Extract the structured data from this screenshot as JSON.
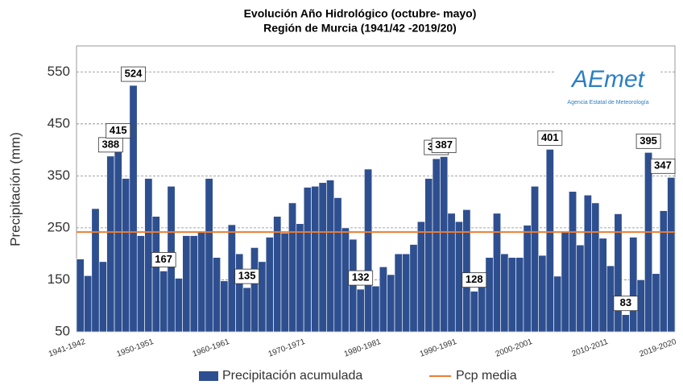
{
  "chart_data": {
    "type": "bar",
    "title": "Evolución Año Hidrológico (octubre- mayo)",
    "subtitle": "Región de Murcia (1941/42 -2019/20)",
    "y_label": "Precipitación (mm)",
    "logo": {
      "text": "AEmet",
      "caption": "Agencia Estatal de Meteorología"
    },
    "categories": [
      "1941-1942",
      null,
      null,
      null,
      null,
      null,
      null,
      null,
      null,
      "1950-1951",
      null,
      null,
      null,
      null,
      null,
      null,
      null,
      null,
      null,
      "1960-1961",
      null,
      null,
      null,
      null,
      null,
      null,
      null,
      null,
      null,
      "1970-1971",
      null,
      null,
      null,
      null,
      null,
      null,
      null,
      null,
      null,
      "1980-1981",
      null,
      null,
      null,
      null,
      null,
      null,
      null,
      null,
      null,
      "1990-1991",
      null,
      null,
      null,
      null,
      null,
      null,
      null,
      null,
      null,
      "2000-2001",
      null,
      null,
      null,
      null,
      null,
      null,
      null,
      null,
      null,
      "2010-2011",
      null,
      null,
      null,
      null,
      null,
      null,
      null,
      null,
      "2019-2020"
    ],
    "series": [
      {
        "name": "Precipitación acumulada",
        "color": "#2e4f8f",
        "values": [
          190,
          158,
          287,
          185,
          388,
          415,
          345,
          524,
          235,
          345,
          272,
          167,
          330,
          153,
          235,
          235,
          243,
          345,
          193,
          148,
          256,
          200,
          135,
          212,
          185,
          232,
          272,
          240,
          298,
          258,
          328,
          330,
          337,
          342,
          308,
          250,
          228,
          132,
          363,
          138,
          175,
          160,
          200,
          200,
          218,
          262,
          345,
          383,
          387,
          278,
          262,
          285,
          128,
          138,
          193,
          278,
          200,
          193,
          193,
          255,
          330,
          197,
          401,
          157,
          242,
          320,
          217,
          313,
          298,
          230,
          177,
          277,
          83,
          232,
          150,
          395,
          162,
          283,
          347
        ],
        "value_labels": [
          null,
          null,
          null,
          null,
          "388",
          "415",
          null,
          "524",
          null,
          null,
          null,
          "167",
          null,
          null,
          null,
          null,
          null,
          null,
          null,
          null,
          null,
          null,
          "135",
          null,
          null,
          null,
          null,
          null,
          null,
          null,
          null,
          null,
          null,
          null,
          null,
          null,
          null,
          "132",
          null,
          null,
          null,
          null,
          null,
          null,
          null,
          null,
          null,
          "383",
          "387",
          null,
          null,
          null,
          "128",
          null,
          null,
          null,
          null,
          null,
          null,
          null,
          null,
          null,
          "401",
          null,
          null,
          null,
          null,
          null,
          null,
          null,
          null,
          null,
          "83",
          null,
          null,
          "395",
          null,
          null,
          "347"
        ]
      }
    ],
    "mean": {
      "name": "Pcp media",
      "color": "#ed7d31",
      "value": 242
    },
    "ylim": [
      50,
      600
    ],
    "yticks": [
      50,
      150,
      250,
      350,
      450,
      550
    ],
    "grid": true
  }
}
